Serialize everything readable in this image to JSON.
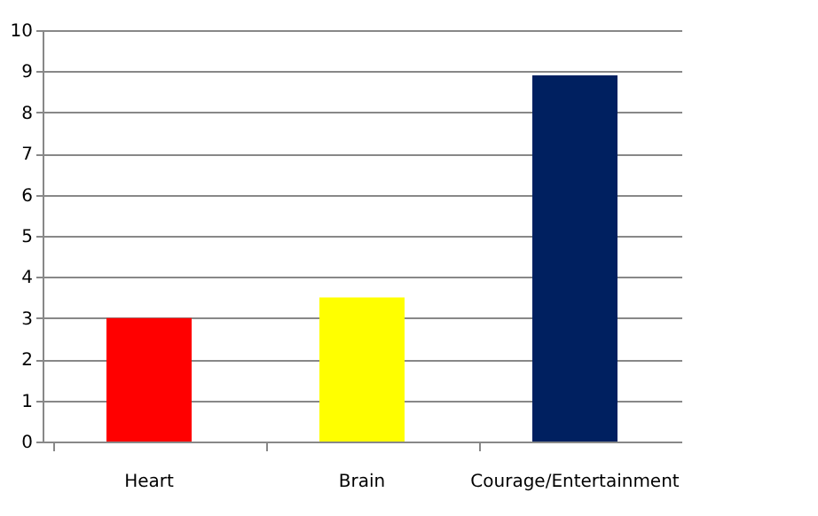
{
  "chart_data": {
    "type": "bar",
    "categories": [
      "Heart",
      "Brain",
      "Courage/Entertainment"
    ],
    "values": [
      3,
      3.5,
      8.9
    ],
    "colors": [
      "#ff0000",
      "#ffff00",
      "#002060"
    ],
    "ylim": [
      0,
      10
    ],
    "yticks": [
      0,
      1,
      2,
      3,
      4,
      5,
      6,
      7,
      8,
      9,
      10
    ],
    "grid": "y"
  }
}
